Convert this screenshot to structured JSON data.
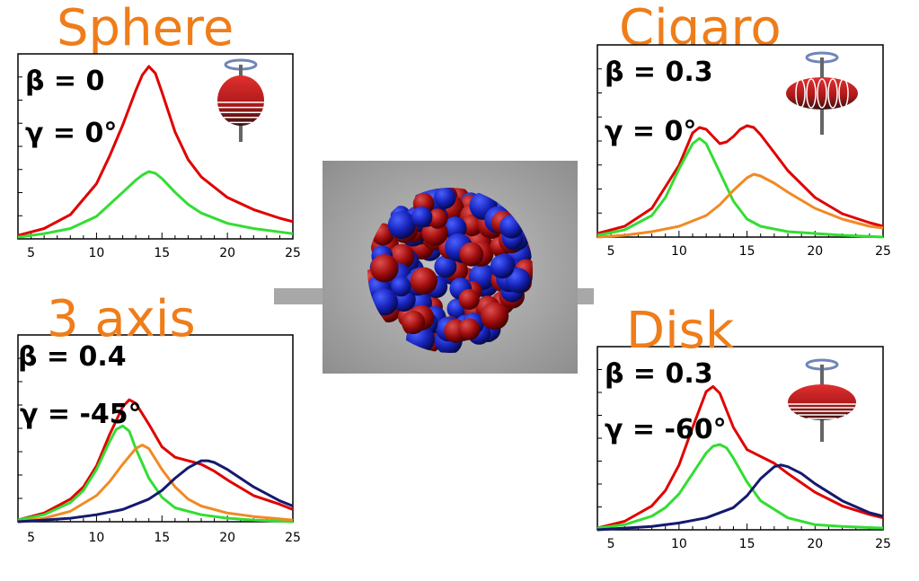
{
  "nucleus_image": {
    "label": ""
  },
  "chart_data": [
    {
      "id": "sphere",
      "type": "line",
      "title": "Sphere",
      "beta_label": "β = 0",
      "gamma_label": "γ = 0°",
      "shape_icon": "spherical-nucleus-icon",
      "xlim": [
        4,
        25
      ],
      "ylim": [
        0,
        1
      ],
      "xticks": [
        5,
        10,
        15,
        20,
        25
      ],
      "series": [
        {
          "color": "#e00000",
          "x": [
            4,
            6,
            8,
            10,
            11,
            12,
            13,
            13.5,
            14,
            14.5,
            15,
            16,
            17,
            18,
            20,
            22,
            24,
            25
          ],
          "y": [
            0.02,
            0.06,
            0.14,
            0.32,
            0.48,
            0.66,
            0.86,
            0.95,
            1.0,
            0.96,
            0.85,
            0.62,
            0.46,
            0.36,
            0.24,
            0.17,
            0.12,
            0.1
          ]
        },
        {
          "color": "#33dd33",
          "x": [
            4,
            6,
            8,
            10,
            11,
            12,
            13,
            13.5,
            14,
            14.5,
            15,
            16,
            17,
            18,
            20,
            22,
            24,
            25
          ],
          "y": [
            0.01,
            0.03,
            0.06,
            0.13,
            0.2,
            0.27,
            0.34,
            0.37,
            0.39,
            0.38,
            0.35,
            0.27,
            0.2,
            0.15,
            0.09,
            0.06,
            0.04,
            0.03
          ]
        }
      ]
    },
    {
      "id": "cigar",
      "type": "line",
      "title": "Cigaro",
      "beta_label": "β = 0.3",
      "gamma_label": "γ = 0°",
      "shape_icon": "prolate-nucleus-icon",
      "xlim": [
        4,
        25
      ],
      "ylim": [
        0,
        1
      ],
      "xticks": [
        5,
        10,
        15,
        20,
        25
      ],
      "series": [
        {
          "color": "#e00000",
          "x": [
            4,
            6,
            8,
            10,
            11,
            11.5,
            12,
            13,
            13.5,
            14,
            14.5,
            15,
            15.5,
            16,
            17,
            18,
            20,
            22,
            24,
            25
          ],
          "y": [
            0.02,
            0.06,
            0.16,
            0.4,
            0.58,
            0.61,
            0.6,
            0.52,
            0.53,
            0.56,
            0.6,
            0.62,
            0.61,
            0.57,
            0.47,
            0.37,
            0.22,
            0.13,
            0.08,
            0.06
          ]
        },
        {
          "color": "#33dd33",
          "x": [
            4,
            6,
            8,
            9,
            10,
            11,
            11.5,
            12,
            13,
            14,
            15,
            16,
            18,
            20,
            22,
            25
          ],
          "y": [
            0.01,
            0.04,
            0.12,
            0.22,
            0.38,
            0.52,
            0.55,
            0.52,
            0.36,
            0.2,
            0.1,
            0.06,
            0.03,
            0.02,
            0.01,
            0.0
          ]
        },
        {
          "color": "#f08a24",
          "x": [
            4,
            6,
            8,
            10,
            12,
            13,
            14,
            15,
            15.5,
            16,
            17,
            18,
            20,
            22,
            24,
            25
          ],
          "y": [
            0.0,
            0.01,
            0.03,
            0.06,
            0.12,
            0.18,
            0.26,
            0.33,
            0.35,
            0.34,
            0.3,
            0.25,
            0.16,
            0.1,
            0.06,
            0.05
          ]
        }
      ]
    },
    {
      "id": "triaxial",
      "type": "line",
      "title": "3 axis",
      "beta_label": "β = 0.4",
      "gamma_label": "γ = -45°",
      "shape_icon": "",
      "xlim": [
        4,
        25
      ],
      "ylim": [
        0,
        1
      ],
      "xticks": [
        5,
        10,
        15,
        20,
        25
      ],
      "series": [
        {
          "color": "#e00000",
          "x": [
            4,
            6,
            8,
            9,
            10,
            11,
            12,
            12.5,
            13,
            14,
            15,
            16,
            17,
            18,
            19,
            20,
            22,
            24,
            25
          ],
          "y": [
            0.01,
            0.05,
            0.13,
            0.2,
            0.32,
            0.5,
            0.66,
            0.7,
            0.68,
            0.56,
            0.43,
            0.37,
            0.35,
            0.33,
            0.29,
            0.24,
            0.15,
            0.1,
            0.07
          ]
        },
        {
          "color": "#33dd33",
          "x": [
            4,
            6,
            8,
            9,
            10,
            11,
            11.5,
            12,
            12.5,
            13,
            14,
            15,
            16,
            18,
            20,
            22,
            25
          ],
          "y": [
            0.01,
            0.04,
            0.11,
            0.18,
            0.3,
            0.46,
            0.53,
            0.55,
            0.52,
            0.42,
            0.25,
            0.14,
            0.08,
            0.04,
            0.02,
            0.01,
            0.0
          ]
        },
        {
          "color": "#f08a24",
          "x": [
            4,
            6,
            8,
            10,
            11,
            12,
            13,
            13.5,
            14,
            15,
            16,
            17,
            18,
            20,
            22,
            25
          ],
          "y": [
            0.0,
            0.02,
            0.06,
            0.15,
            0.23,
            0.33,
            0.42,
            0.44,
            0.42,
            0.3,
            0.2,
            0.13,
            0.09,
            0.05,
            0.03,
            0.01
          ]
        },
        {
          "color": "#141a6e",
          "x": [
            4,
            6,
            8,
            10,
            12,
            14,
            15,
            16,
            17,
            18,
            18.5,
            19,
            20,
            22,
            24,
            25
          ],
          "y": [
            0.0,
            0.01,
            0.02,
            0.04,
            0.07,
            0.13,
            0.18,
            0.25,
            0.31,
            0.35,
            0.35,
            0.34,
            0.3,
            0.2,
            0.12,
            0.09
          ]
        }
      ]
    },
    {
      "id": "disk",
      "type": "line",
      "title": "Disk",
      "beta_label": "β = 0.3",
      "gamma_label": "γ = -60°",
      "shape_icon": "oblate-nucleus-icon",
      "xlim": [
        4,
        25
      ],
      "ylim": [
        0,
        1
      ],
      "xticks": [
        5,
        10,
        15,
        20,
        25
      ],
      "series": [
        {
          "color": "#e00000",
          "x": [
            4,
            6,
            8,
            9,
            10,
            11,
            12,
            12.5,
            13,
            14,
            15,
            16,
            17,
            18,
            20,
            22,
            24,
            25
          ],
          "y": [
            0.01,
            0.05,
            0.14,
            0.23,
            0.38,
            0.6,
            0.81,
            0.84,
            0.8,
            0.6,
            0.47,
            0.43,
            0.39,
            0.33,
            0.22,
            0.14,
            0.09,
            0.07
          ]
        },
        {
          "color": "#33dd33",
          "x": [
            4,
            6,
            8,
            9,
            10,
            11,
            12,
            12.5,
            13,
            13.5,
            14,
            15,
            16,
            18,
            20,
            22,
            25
          ],
          "y": [
            0.01,
            0.03,
            0.08,
            0.13,
            0.21,
            0.33,
            0.45,
            0.49,
            0.5,
            0.48,
            0.42,
            0.28,
            0.17,
            0.07,
            0.03,
            0.02,
            0.01
          ]
        },
        {
          "color": "#141a6e",
          "x": [
            4,
            6,
            8,
            10,
            12,
            14,
            15,
            16,
            17,
            17.5,
            18,
            19,
            20,
            22,
            24,
            25
          ],
          "y": [
            0.0,
            0.01,
            0.02,
            0.04,
            0.07,
            0.13,
            0.2,
            0.3,
            0.37,
            0.38,
            0.37,
            0.33,
            0.27,
            0.17,
            0.1,
            0.08
          ]
        }
      ]
    }
  ]
}
